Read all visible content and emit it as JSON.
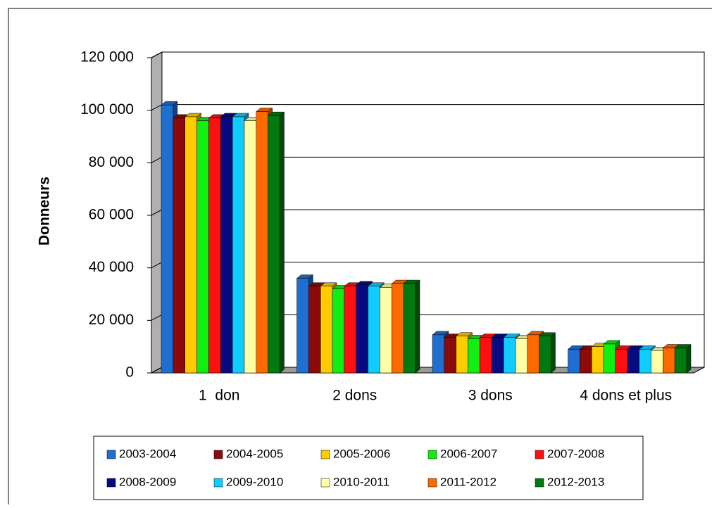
{
  "chart_data": {
    "type": "bar",
    "ylabel": "Donneurs",
    "categories": [
      "1  don",
      "2 dons",
      "3 dons",
      "4 dons et plus"
    ],
    "series": [
      {
        "name": "2003-2004",
        "color": "#1f6fd0",
        "values": [
          102000,
          36000,
          14500,
          9000
        ]
      },
      {
        "name": "2004-2005",
        "color": "#8b0a0a",
        "values": [
          97000,
          33000,
          13500,
          9000
        ]
      },
      {
        "name": "2005-2006",
        "color": "#ffcc00",
        "values": [
          97500,
          33000,
          14000,
          10000
        ]
      },
      {
        "name": "2006-2007",
        "color": "#11ee11",
        "values": [
          96000,
          32000,
          13000,
          11000
        ]
      },
      {
        "name": "2007-2008",
        "color": "#ff1010",
        "values": [
          97000,
          33000,
          13500,
          9000
        ]
      },
      {
        "name": "2008-2009",
        "color": "#0a0a80",
        "values": [
          97500,
          33500,
          13500,
          9000
        ]
      },
      {
        "name": "2009-2010",
        "color": "#11ccff",
        "values": [
          97500,
          33000,
          13500,
          9000
        ]
      },
      {
        "name": "2010-2011",
        "color": "#ffffa8",
        "values": [
          96000,
          32500,
          13000,
          8500
        ]
      },
      {
        "name": "2011-2012",
        "color": "#ff6a00",
        "values": [
          99500,
          34000,
          14500,
          9500
        ]
      },
      {
        "name": "2012-2013",
        "color": "#007a10",
        "values": [
          98000,
          34000,
          14000,
          9500
        ]
      }
    ],
    "ylim": [
      0,
      120000
    ],
    "yticks": [
      0,
      {
        "value": 20000,
        "label": "20 000"
      },
      {
        "value": 40000,
        "label": "40 000"
      },
      {
        "value": 60000,
        "label": "60 000"
      },
      {
        "value": 80000,
        "label": "80 000"
      },
      {
        "value": 100000,
        "label": "100 000"
      },
      {
        "value": 120000,
        "label": "120 000"
      }
    ],
    "grid": true
  }
}
